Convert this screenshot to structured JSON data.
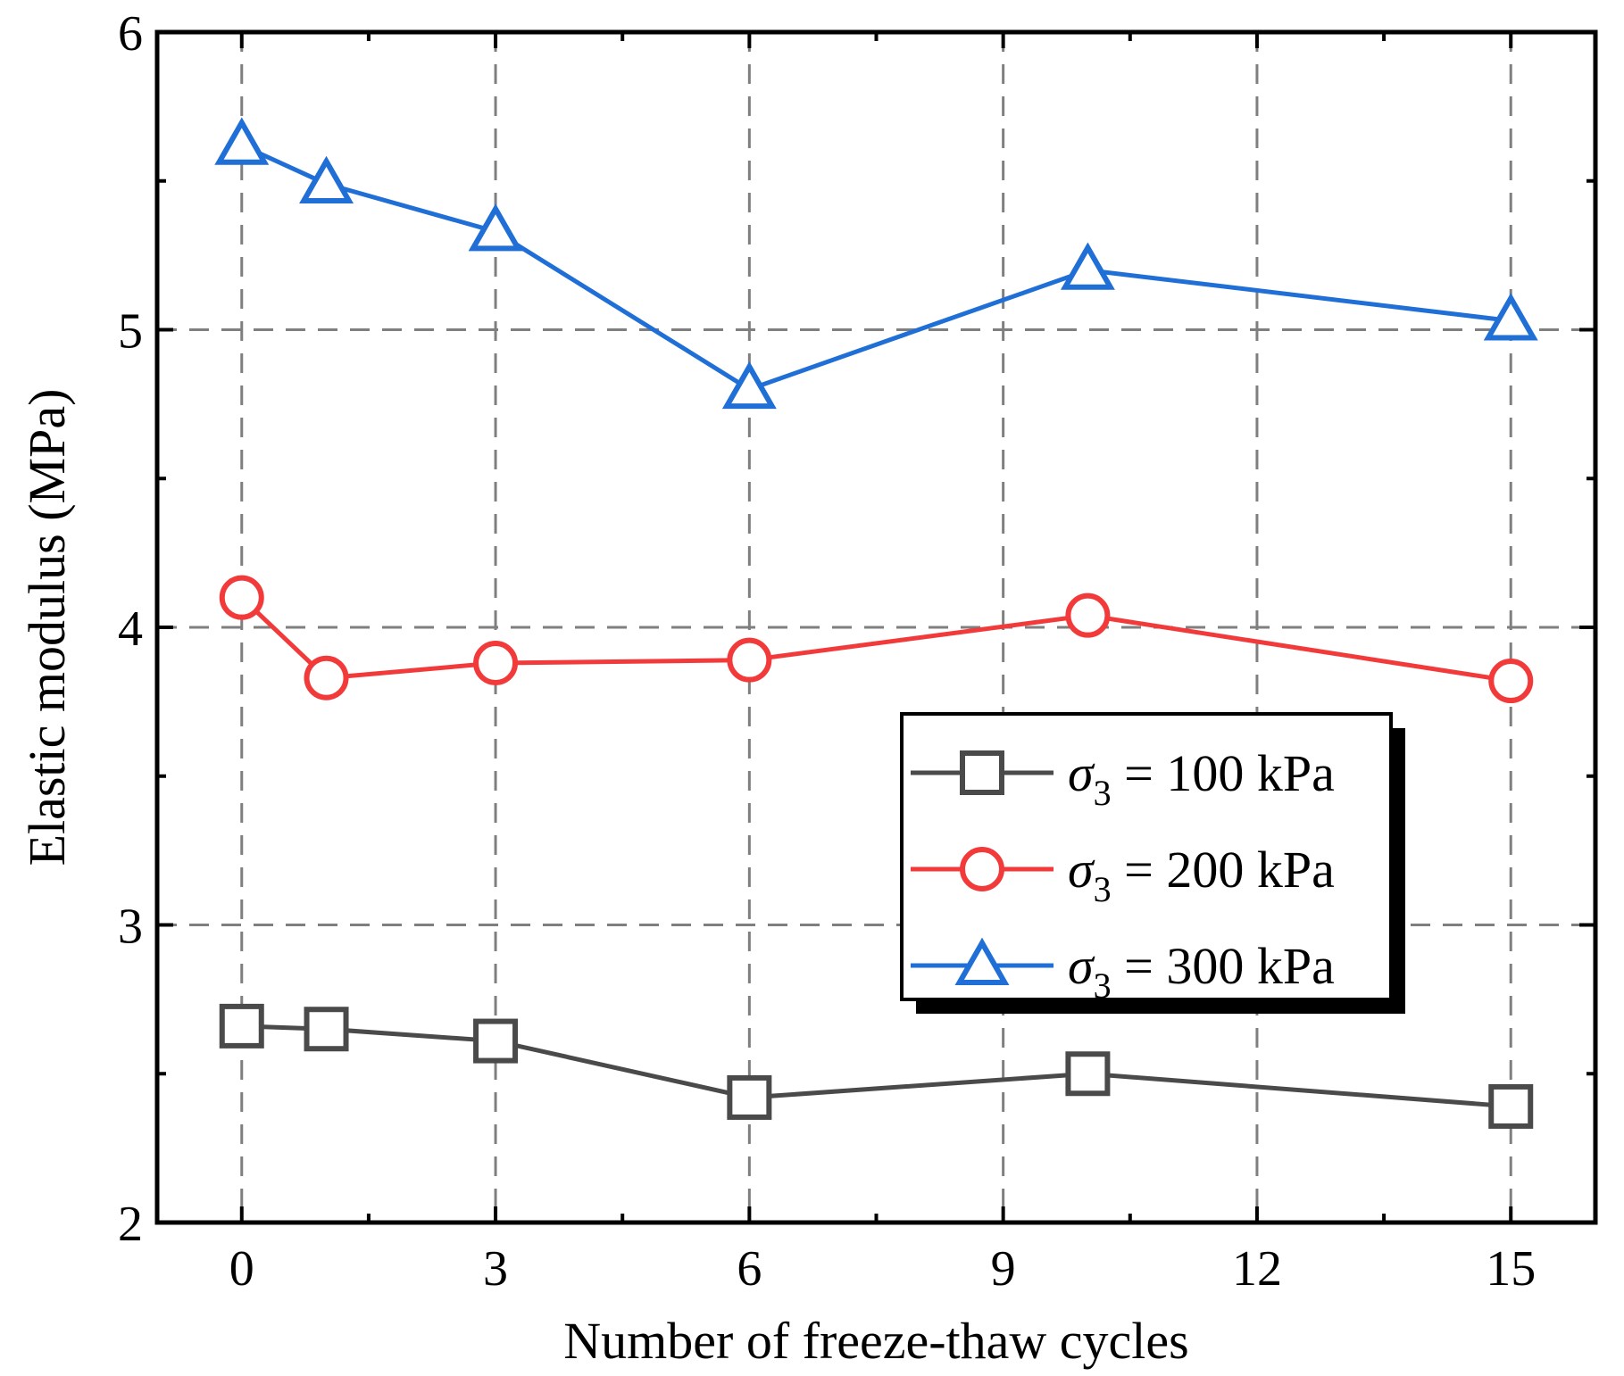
{
  "chart_data": {
    "type": "line",
    "title": "",
    "xlabel": "Number of freeze-thaw cycles",
    "ylabel": "Elastic modulus (MPa)",
    "xlim": [
      -1,
      16
    ],
    "ylim": [
      2,
      6
    ],
    "xticks": [
      0,
      3,
      6,
      9,
      12,
      15
    ],
    "xtick_labels": [
      "0",
      "3",
      "6",
      "9",
      "12",
      "15"
    ],
    "xminor": [
      1.5,
      4.5,
      7.5,
      10.5,
      13.5
    ],
    "yticks": [
      2,
      3,
      4,
      5,
      6
    ],
    "ytick_labels": [
      "2",
      "3",
      "4",
      "5",
      "6"
    ],
    "yminor": [
      2.5,
      3.5,
      4.5,
      5.5
    ],
    "grid": true,
    "legend_position": "center-right",
    "x": [
      0,
      1,
      3,
      6,
      10,
      15
    ],
    "series": [
      {
        "name": "σ3 = 100 kPa",
        "legend_symbol": "σ",
        "legend_subscript": "3",
        "legend_rest": " = 100 kPa",
        "color": "#4a4a4a",
        "marker": "square",
        "values": [
          2.66,
          2.65,
          2.61,
          2.42,
          2.5,
          2.39
        ]
      },
      {
        "name": "σ3 = 200 kPa",
        "legend_symbol": "σ",
        "legend_subscript": "3",
        "legend_rest": " = 200 kPa",
        "color": "#f23a3a",
        "marker": "circle",
        "values": [
          4.1,
          3.83,
          3.88,
          3.89,
          4.04,
          3.82
        ]
      },
      {
        "name": "σ3 = 300 kPa",
        "legend_symbol": "σ",
        "legend_subscript": "3",
        "legend_rest": " = 300 kPa",
        "color": "#1f6fd6",
        "marker": "triangle",
        "values": [
          5.62,
          5.49,
          5.33,
          4.8,
          5.2,
          5.03
        ]
      }
    ]
  }
}
